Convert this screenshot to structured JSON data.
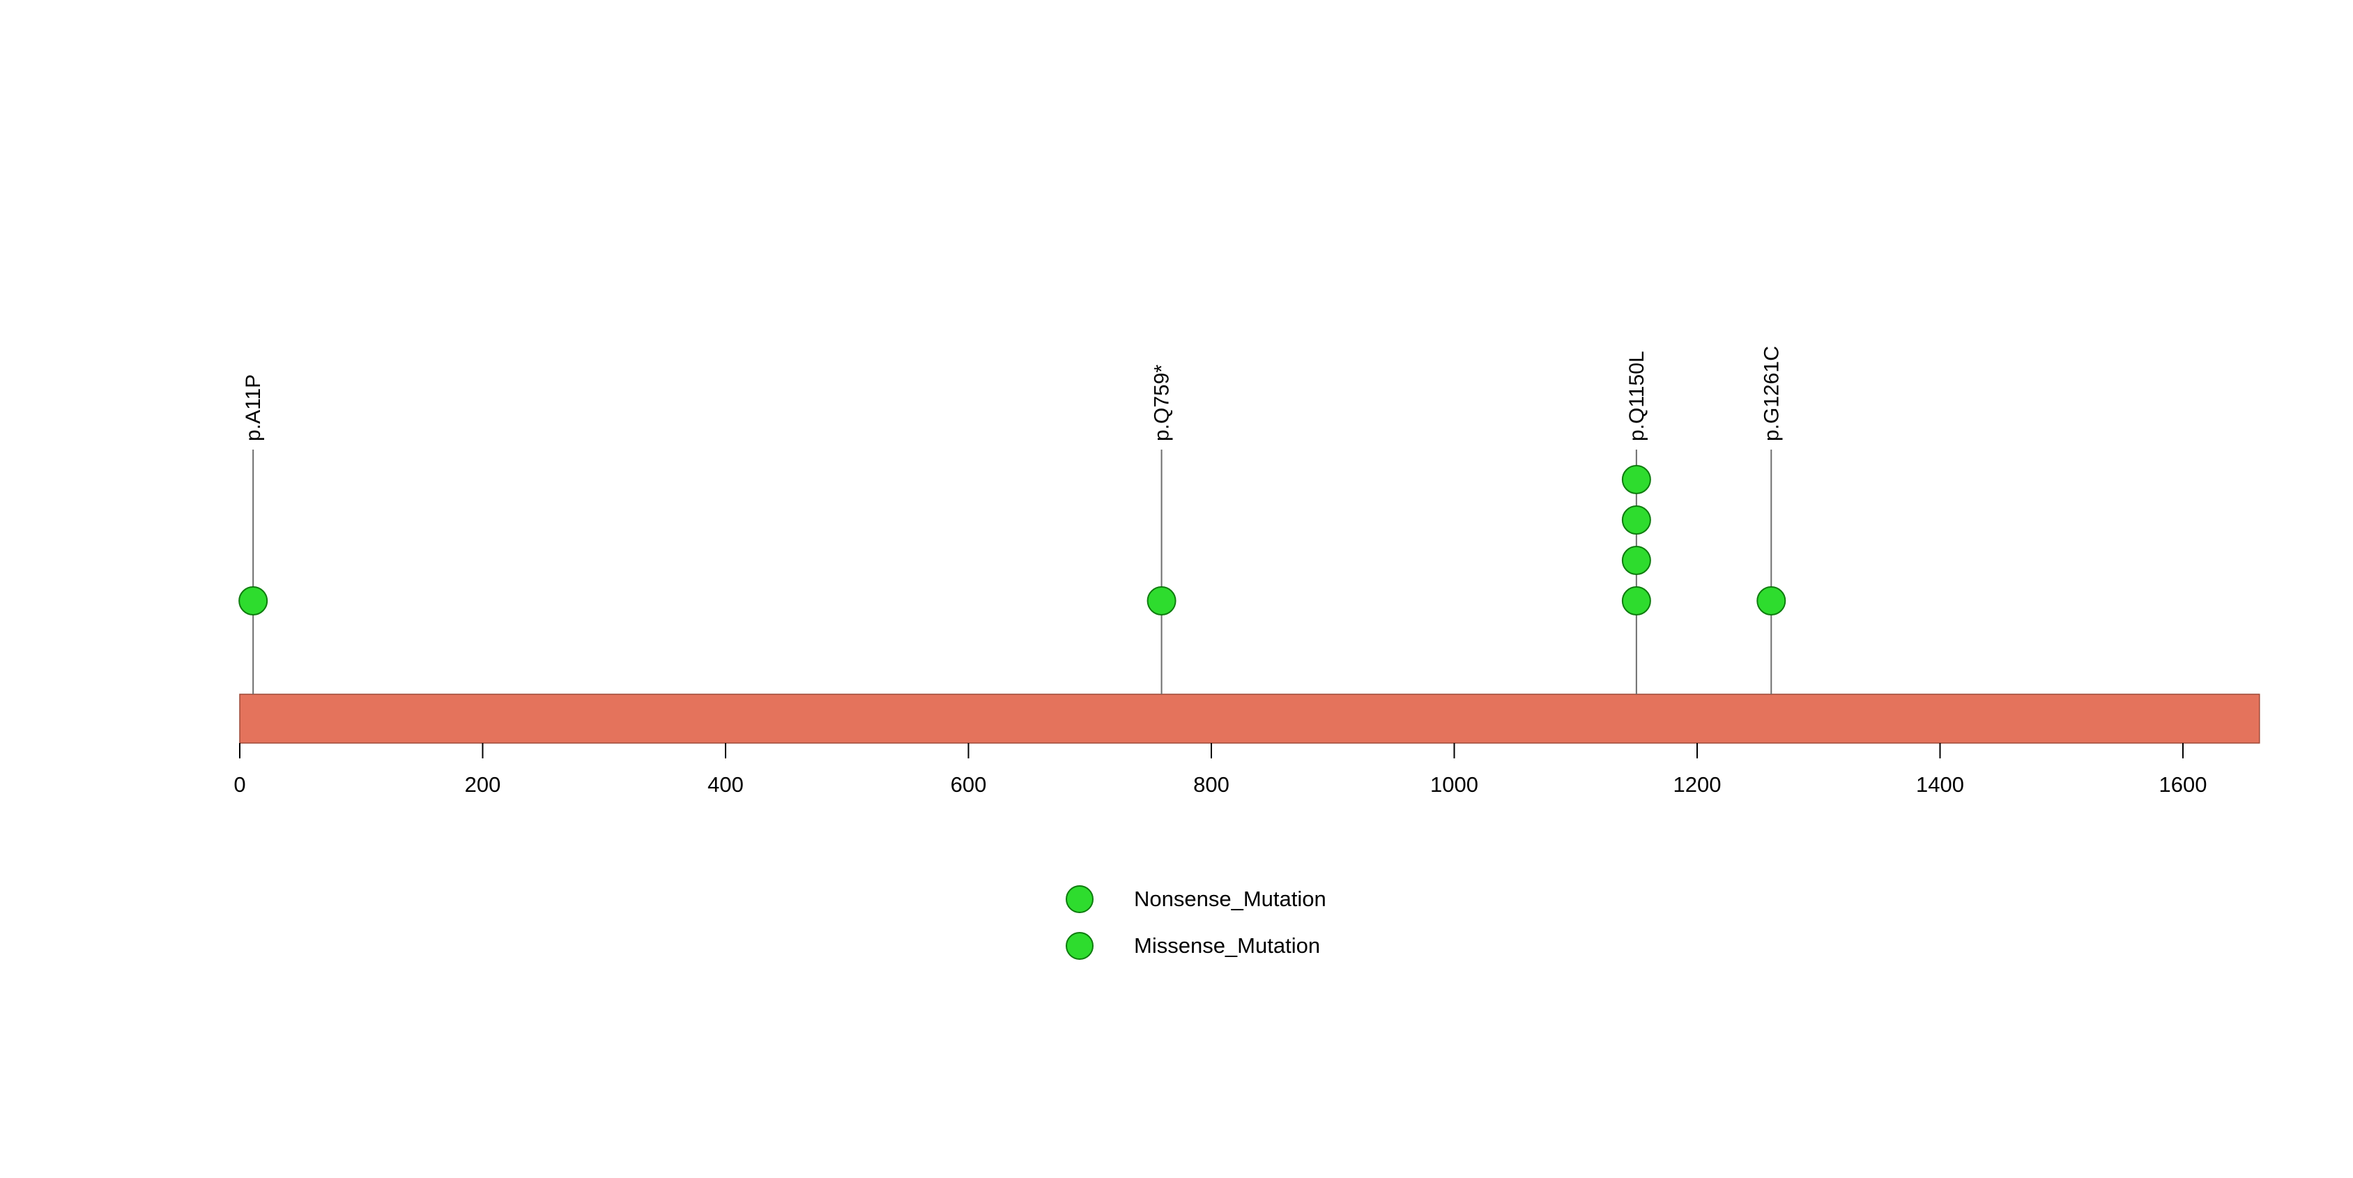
{
  "chart_data": {
    "type": "lollipop",
    "title": "",
    "xlabel": "",
    "ylabel": "",
    "protein": {
      "length": 1663,
      "bar_color": "#E4735C",
      "bar_border_color": "#9E4A38"
    },
    "x_axis": {
      "min": 0,
      "max": 1663,
      "ticks": [
        0,
        200,
        400,
        600,
        800,
        1000,
        1200,
        1400,
        1600
      ]
    },
    "mutations": [
      {
        "label": "p.A11P",
        "position": 11,
        "count": 1,
        "type": "Missense_Mutation"
      },
      {
        "label": "p.Q759*",
        "position": 759,
        "count": 1,
        "type": "Nonsense_Mutation"
      },
      {
        "label": "p.Q1150L",
        "position": 1150,
        "count": 4,
        "type": "Missense_Mutation"
      },
      {
        "label": "p.G1261C",
        "position": 1261,
        "count": 1,
        "type": "Missense_Mutation"
      }
    ],
    "point_style": {
      "fill": "#2EDC2E",
      "stroke": "#0E7C0E"
    },
    "stem_color": "#6E6E6E",
    "legend_position": "bottom-center",
    "legend": [
      {
        "label": "Nonsense_Mutation",
        "color": "#2EDC2E"
      },
      {
        "label": "Missense_Mutation",
        "color": "#2EDC2E"
      }
    ]
  }
}
